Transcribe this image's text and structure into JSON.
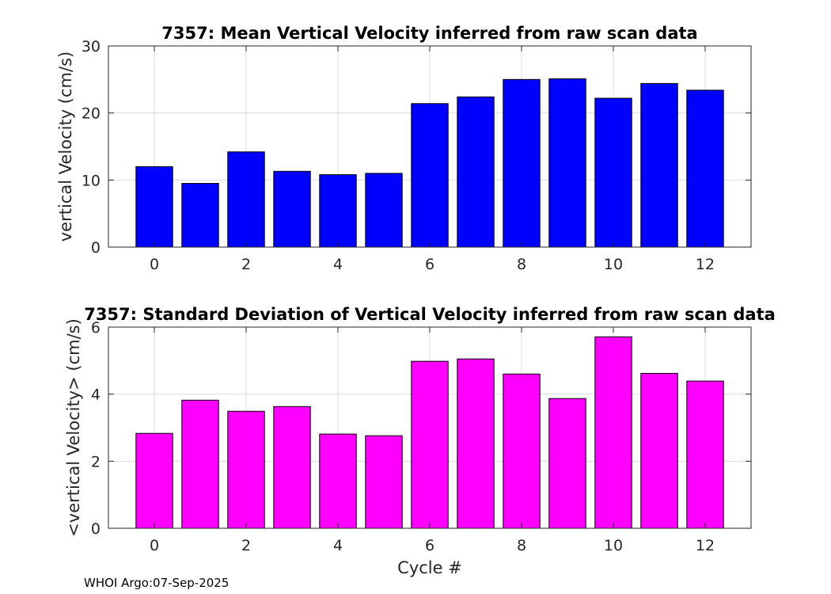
{
  "footer": "WHOI Argo:07-Sep-2025",
  "chart_data": [
    {
      "type": "bar",
      "title": "7357: Mean Vertical Velocity inferred from raw scan data",
      "xlabel": "",
      "ylabel": "vertical Velocity (cm/s)",
      "x": [
        0,
        1,
        2,
        3,
        4,
        5,
        6,
        7,
        8,
        9,
        10,
        11,
        12
      ],
      "values": [
        12.0,
        9.5,
        14.2,
        11.3,
        10.8,
        11.0,
        21.4,
        22.4,
        25.0,
        25.1,
        22.2,
        24.4,
        23.4
      ],
      "xlim": [
        -1,
        13
      ],
      "ylim": [
        0,
        30
      ],
      "xticks": [
        0,
        2,
        4,
        6,
        8,
        10,
        12
      ],
      "yticks": [
        0,
        10,
        20,
        30
      ],
      "color": "#0000ff",
      "grid": true
    },
    {
      "type": "bar",
      "title": "7357: Standard Deviation of Vertical Velocity inferred from raw scan data",
      "xlabel": "Cycle #",
      "ylabel": "<vertical Velocity> (cm/s)",
      "x": [
        0,
        1,
        2,
        3,
        4,
        5,
        6,
        7,
        8,
        9,
        10,
        11,
        12
      ],
      "values": [
        2.83,
        3.82,
        3.49,
        3.63,
        2.81,
        2.76,
        4.98,
        5.05,
        4.6,
        3.87,
        5.71,
        4.62,
        4.39
      ],
      "xlim": [
        -1,
        13
      ],
      "ylim": [
        0,
        6
      ],
      "xticks": [
        0,
        2,
        4,
        6,
        8,
        10,
        12
      ],
      "yticks": [
        0,
        2,
        4,
        6
      ],
      "color": "#ff00ff",
      "grid": true
    }
  ]
}
